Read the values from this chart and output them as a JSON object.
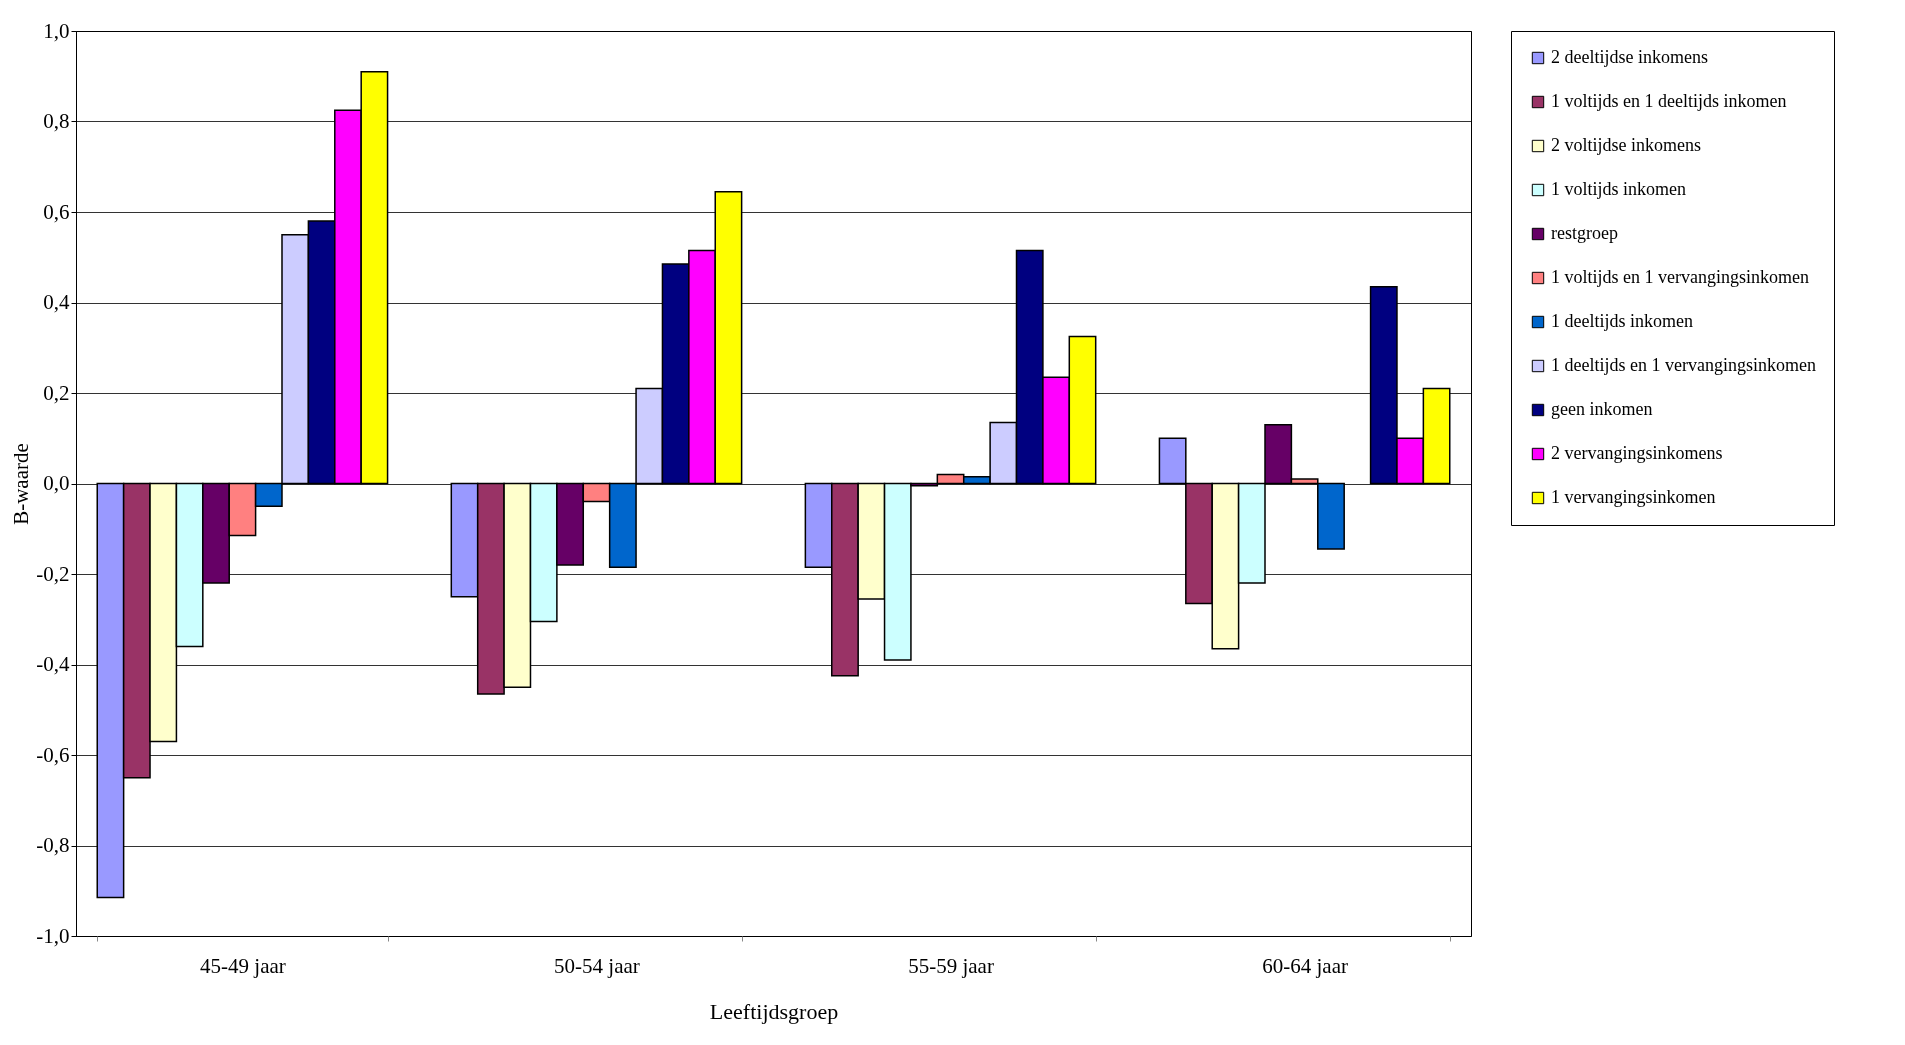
{
  "chart_data": {
    "type": "bar",
    "xlabel": "Leeftijdsgroep",
    "ylabel": "B-waarde",
    "categories": [
      "45-49 jaar",
      "50-54 jaar",
      "55-59 jaar",
      "60-64 jaar"
    ],
    "series": [
      {
        "name": "2 deeltijdse inkomens",
        "color": "#9999ff",
        "values": [
          -0.915,
          -0.25,
          -0.185,
          0.1
        ]
      },
      {
        "name": "1 voltijds en 1 deeltijds inkomen",
        "color": "#993366",
        "values": [
          -0.65,
          -0.465,
          -0.425,
          -0.265
        ]
      },
      {
        "name": "2 voltijdse inkomens",
        "color": "#ffffcc",
        "values": [
          -0.57,
          -0.45,
          -0.255,
          -0.365
        ]
      },
      {
        "name": "1 voltijds inkomen",
        "color": "#ccffff",
        "values": [
          -0.36,
          -0.305,
          -0.39,
          -0.22
        ]
      },
      {
        "name": "restgroep",
        "color": "#660066",
        "values": [
          -0.22,
          -0.18,
          -0.005,
          0.13
        ]
      },
      {
        "name": "1 voltijds en 1 vervangingsinkomen",
        "color": "#ff8080",
        "values": [
          -0.115,
          -0.04,
          0.02,
          0.01
        ]
      },
      {
        "name": "1 deeltijds inkomen",
        "color": "#0066cc",
        "values": [
          -0.05,
          -0.185,
          0.015,
          -0.145
        ]
      },
      {
        "name": "1 deeltijds en 1 vervangingsinkomen",
        "color": "#ccccff",
        "values": [
          0.55,
          0.21,
          0.135,
          null
        ]
      },
      {
        "name": "geen inkomen",
        "color": "#000080",
        "values": [
          0.58,
          0.485,
          0.515,
          0.435
        ]
      },
      {
        "name": "2 vervangingsinkomens",
        "color": "#ff00ff",
        "values": [
          0.825,
          0.515,
          0.235,
          0.1
        ]
      },
      {
        "name": "1 vervangingsinkomen",
        "color": "#ffff00",
        "values": [
          0.91,
          0.645,
          0.325,
          0.21
        ]
      }
    ],
    "ylim": [
      -1.0,
      1.0
    ],
    "yticks": [
      {
        "value": -1.0,
        "label": "-1,0"
      },
      {
        "value": -0.8,
        "label": "-0,8"
      },
      {
        "value": -0.6,
        "label": "-0,6"
      },
      {
        "value": -0.4,
        "label": "-0,4"
      },
      {
        "value": -0.2,
        "label": "-0,2"
      },
      {
        "value": 0,
        "label": "0,0"
      },
      {
        "value": 0.2,
        "label": "0,2"
      },
      {
        "value": 0.4,
        "label": "0,4"
      },
      {
        "value": 0.6,
        "label": "0,6"
      },
      {
        "value": 0.8,
        "label": "0,8"
      },
      {
        "value": 1.0,
        "label": "1,0"
      }
    ],
    "grid": "y",
    "legend": "right"
  }
}
